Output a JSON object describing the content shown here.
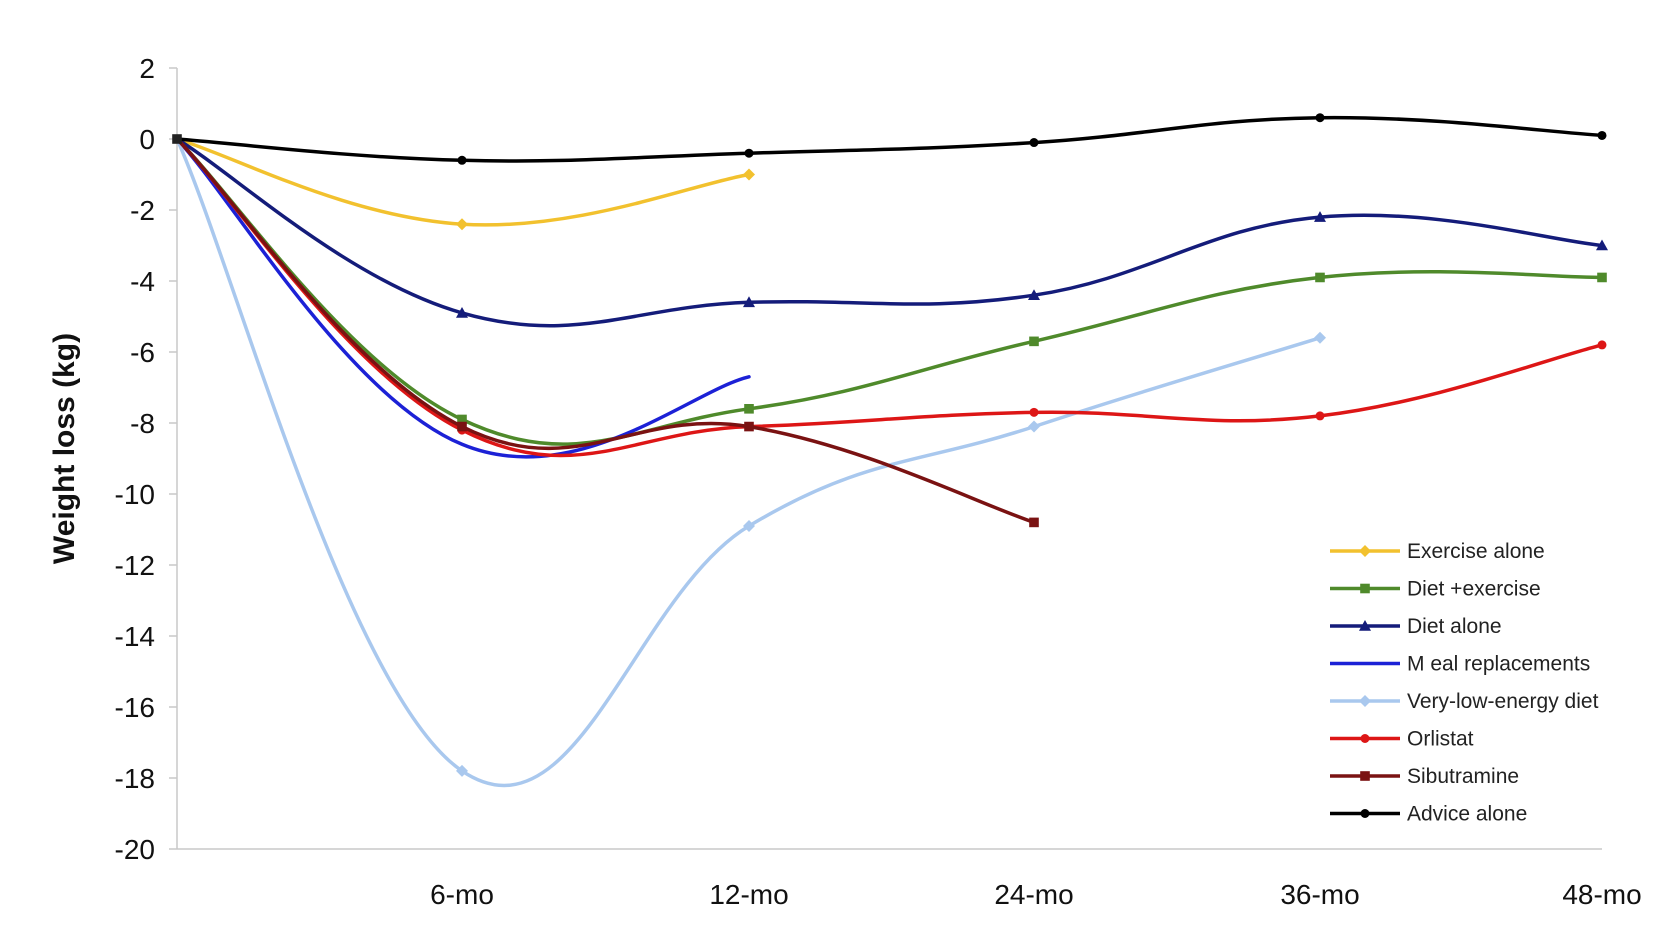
{
  "chart_data": {
    "type": "line",
    "title": "",
    "xlabel": "",
    "ylabel": "Weight loss (kg)",
    "categories": [
      "",
      "6-mo",
      "12-mo",
      "24-mo",
      "36-mo",
      "48-mo"
    ],
    "ylim": [
      -20,
      2
    ],
    "yticks": [
      2,
      0,
      -2,
      -4,
      -6,
      -8,
      -10,
      -12,
      -14,
      -16,
      -18,
      -20
    ],
    "grid": false,
    "legend_position": "bottom-right",
    "series": [
      {
        "name": "Exercise alone",
        "color": "#F2C12E",
        "marker": "diamond",
        "values": [
          0,
          -2.4,
          -1.0,
          null,
          null,
          null
        ]
      },
      {
        "name": "Diet +exercise",
        "color": "#4F8A2B",
        "marker": "square",
        "values": [
          0,
          -7.9,
          -7.6,
          -5.7,
          -3.9,
          -3.9
        ]
      },
      {
        "name": "Diet alone",
        "color": "#141C7A",
        "marker": "triangle",
        "values": [
          0,
          -4.9,
          -4.6,
          -4.4,
          -2.2,
          -3.0
        ]
      },
      {
        "name": "M eal replacements",
        "color": "#1C21D6",
        "marker": "none",
        "values": [
          0,
          -8.6,
          -6.7,
          null,
          null,
          null
        ]
      },
      {
        "name": "Very-low-energy diet",
        "color": "#A9C8EE",
        "marker": "diamond",
        "values": [
          0,
          -17.8,
          -10.9,
          -8.1,
          -5.6,
          null
        ]
      },
      {
        "name": "Orlistat",
        "color": "#DD1616",
        "marker": "circle",
        "values": [
          0,
          -8.2,
          -8.1,
          -7.7,
          -7.8,
          -5.8
        ]
      },
      {
        "name": "Sibutramine",
        "color": "#7A1212",
        "marker": "square",
        "values": [
          0,
          -8.1,
          -8.1,
          -10.8,
          null,
          null
        ]
      },
      {
        "name": "Advice alone",
        "color": "#000000",
        "marker": "circle",
        "values": [
          0,
          -0.6,
          -0.4,
          -0.1,
          0.6,
          0.1
        ]
      }
    ]
  }
}
